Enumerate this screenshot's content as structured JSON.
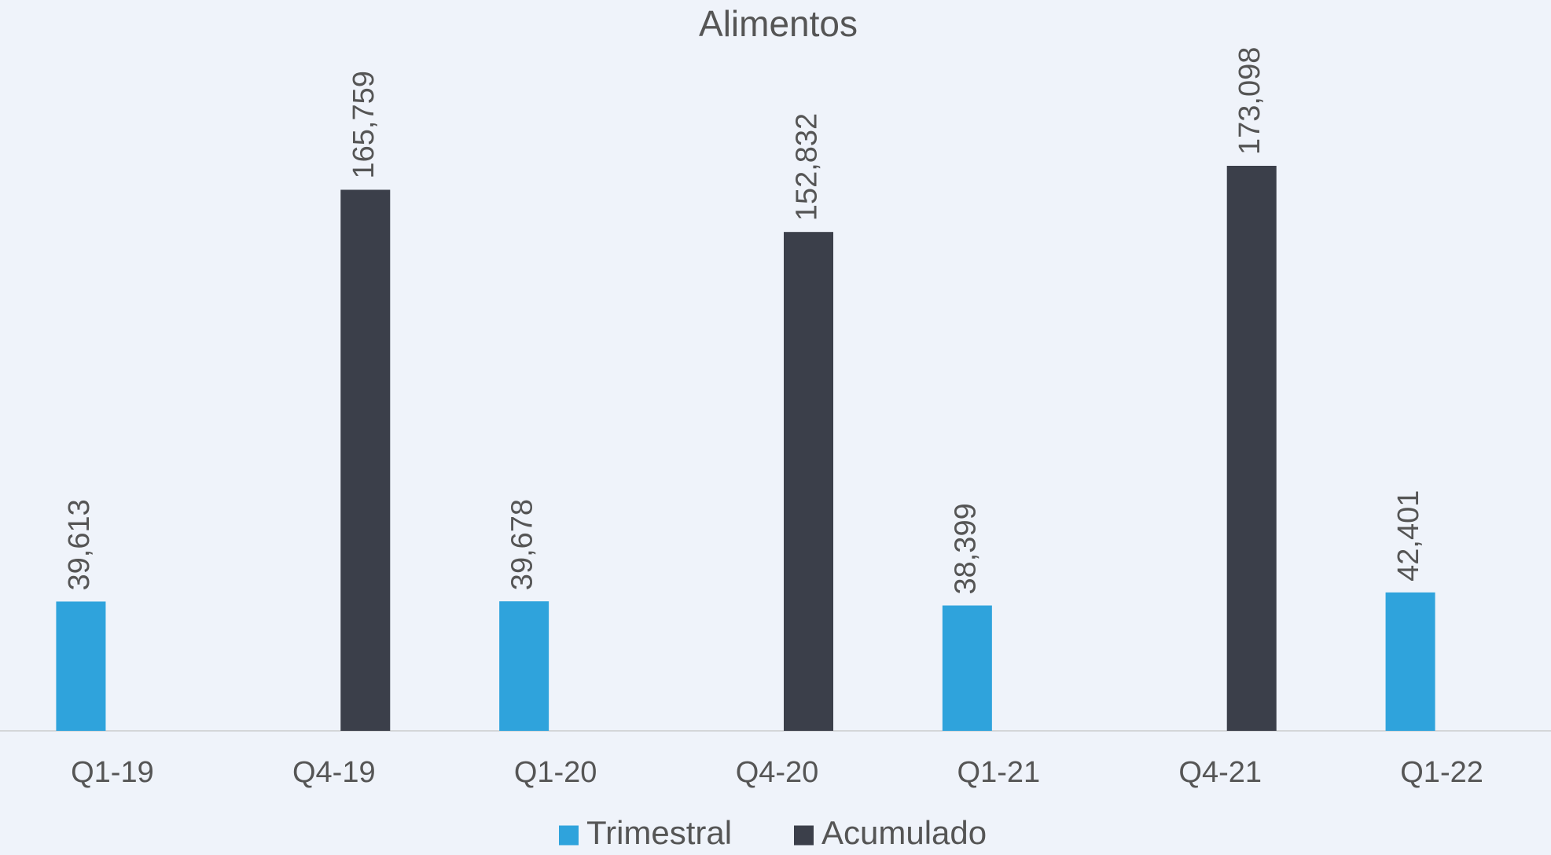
{
  "chart_data": {
    "type": "bar",
    "title": "Alimentos",
    "categories": [
      "Q1-19",
      "Q4-19",
      "Q1-20",
      "Q4-20",
      "Q1-21",
      "Q4-21",
      "Q1-22"
    ],
    "series": [
      {
        "name": "Trimestral",
        "color": "#2fa3dc",
        "values": [
          39613,
          null,
          39678,
          null,
          38399,
          null,
          42401
        ],
        "value_labels": [
          "39,613",
          null,
          "39,678",
          null,
          "38,399",
          null,
          "42,401"
        ]
      },
      {
        "name": "Acumulado",
        "color": "#3b3f4a",
        "values": [
          null,
          165759,
          null,
          152832,
          null,
          173098,
          null
        ],
        "value_labels": [
          null,
          "165,759",
          null,
          "152,832",
          null,
          "173,098",
          null
        ]
      }
    ],
    "legend": "bottom"
  }
}
